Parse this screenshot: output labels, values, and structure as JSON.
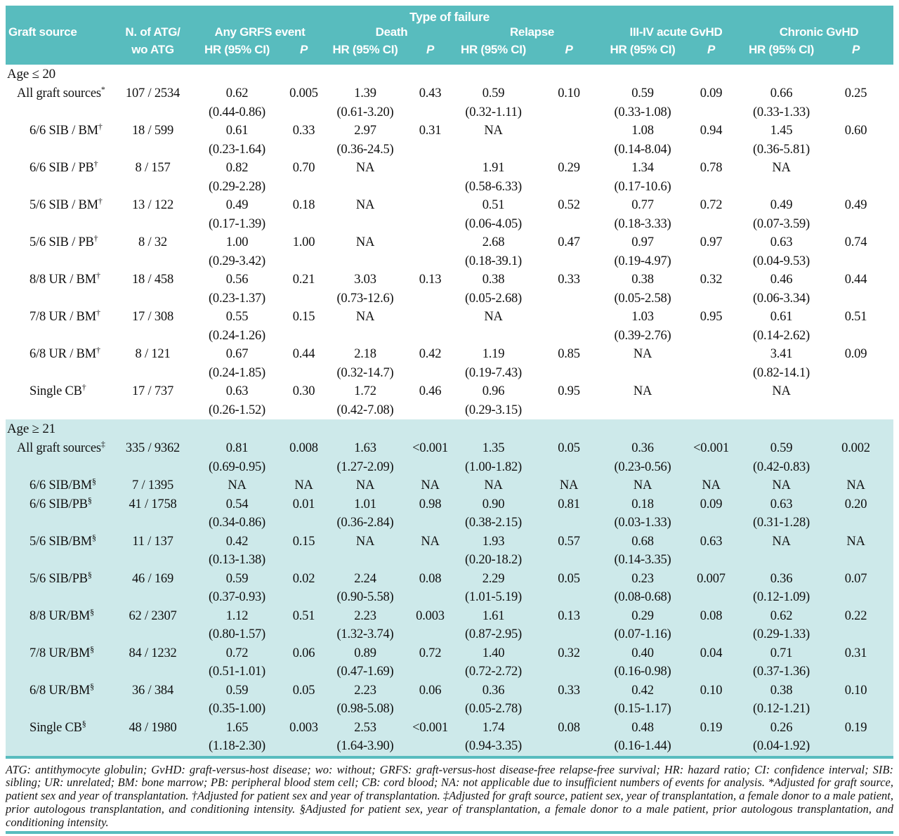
{
  "colors": {
    "header_teal": "#58bcbe",
    "section_light_teal": "#cde9ea"
  },
  "table": {
    "spanner": "Type of failure",
    "header": {
      "graft_source": "Graft source",
      "n_col_line1": "N. of ATG/",
      "n_col_line2": "wo ATG",
      "hr_label": "HR (95% CI)",
      "p_label": "P",
      "groups": [
        {
          "label": "Any GRFS event"
        },
        {
          "label": "Death"
        },
        {
          "label": "Relapse"
        },
        {
          "label": "III-IV acute GvHD"
        },
        {
          "label": "Chronic GvHD"
        }
      ]
    },
    "sections": [
      {
        "label": "Age ≤ 20",
        "rows": [
          {
            "source": "All graft sources",
            "mark": "*",
            "indent": false,
            "n": "107 / 2534",
            "cells": [
              {
                "hr": "0.62",
                "ci": "(0.44-0.86)",
                "p": "0.005"
              },
              {
                "hr": "1.39",
                "ci": "(0.61-3.20)",
                "p": "0.43"
              },
              {
                "hr": "0.59",
                "ci": "(0.32-1.11)",
                "p": "0.10"
              },
              {
                "hr": "0.59",
                "ci": "(0.33-1.08)",
                "p": "0.09"
              },
              {
                "hr": "0.66",
                "ci": "(0.33-1.33)",
                "p": "0.25"
              }
            ]
          },
          {
            "source": "6/6 SIB / BM",
            "mark": "†",
            "indent": true,
            "n": "18 / 599",
            "cells": [
              {
                "hr": "0.61",
                "ci": "(0.23-1.64)",
                "p": "0.33"
              },
              {
                "hr": "2.97",
                "ci": "(0.36-24.5)",
                "p": "0.31"
              },
              {
                "hr": "NA",
                "ci": "",
                "p": ""
              },
              {
                "hr": "1.08",
                "ci": "(0.14-8.04)",
                "p": "0.94"
              },
              {
                "hr": "1.45",
                "ci": "(0.36-5.81)",
                "p": "0.60"
              }
            ]
          },
          {
            "source": "6/6 SIB / PB",
            "mark": "†",
            "indent": true,
            "n": "8 / 157",
            "cells": [
              {
                "hr": "0.82",
                "ci": "(0.29-2.28)",
                "p": "0.70"
              },
              {
                "hr": "NA",
                "ci": "",
                "p": ""
              },
              {
                "hr": "1.91",
                "ci": "(0.58-6.33)",
                "p": "0.29"
              },
              {
                "hr": "1.34",
                "ci": "(0.17-10.6)",
                "p": "0.78"
              },
              {
                "hr": "NA",
                "ci": "",
                "p": ""
              }
            ]
          },
          {
            "source": "5/6 SIB / BM",
            "mark": "†",
            "indent": true,
            "n": "13 / 122",
            "cells": [
              {
                "hr": "0.49",
                "ci": "(0.17-1.39)",
                "p": "0.18"
              },
              {
                "hr": "NA",
                "ci": "",
                "p": ""
              },
              {
                "hr": "0.51",
                "ci": "(0.06-4.05)",
                "p": "0.52"
              },
              {
                "hr": "0.77",
                "ci": "(0.18-3.33)",
                "p": "0.72"
              },
              {
                "hr": "0.49",
                "ci": "(0.07-3.59)",
                "p": "0.49"
              }
            ]
          },
          {
            "source": "5/6 SIB / PB",
            "mark": "†",
            "indent": true,
            "n": "8 / 32",
            "cells": [
              {
                "hr": "1.00",
                "ci": "(0.29-3.42)",
                "p": "1.00"
              },
              {
                "hr": "NA",
                "ci": "",
                "p": ""
              },
              {
                "hr": "2.68",
                "ci": "(0.18-39.1)",
                "p": "0.47"
              },
              {
                "hr": "0.97",
                "ci": "(0.19-4.97)",
                "p": "0.97"
              },
              {
                "hr": "0.63",
                "ci": "(0.04-9.53)",
                "p": "0.74"
              }
            ]
          },
          {
            "source": "8/8 UR / BM",
            "mark": "†",
            "indent": true,
            "n": "18 / 458",
            "cells": [
              {
                "hr": "0.56",
                "ci": "(0.23-1.37)",
                "p": "0.21"
              },
              {
                "hr": "3.03",
                "ci": "(0.73-12.6)",
                "p": "0.13"
              },
              {
                "hr": "0.38",
                "ci": "(0.05-2.68)",
                "p": "0.33"
              },
              {
                "hr": "0.38",
                "ci": "(0.05-2.58)",
                "p": "0.32"
              },
              {
                "hr": "0.46",
                "ci": "(0.06-3.34)",
                "p": "0.44"
              }
            ]
          },
          {
            "source": "7/8 UR / BM",
            "mark": "†",
            "indent": true,
            "n": "17 / 308",
            "cells": [
              {
                "hr": "0.55",
                "ci": "(0.24-1.26)",
                "p": "0.15"
              },
              {
                "hr": "NA",
                "ci": "",
                "p": ""
              },
              {
                "hr": "NA",
                "ci": "",
                "p": ""
              },
              {
                "hr": "1.03",
                "ci": "(0.39-2.76)",
                "p": "0.95"
              },
              {
                "hr": "0.61",
                "ci": "(0.14-2.62)",
                "p": "0.51"
              }
            ]
          },
          {
            "source": "6/8 UR / BM",
            "mark": "†",
            "indent": true,
            "n": "8 / 121",
            "cells": [
              {
                "hr": "0.67",
                "ci": "(0.24-1.85)",
                "p": "0.44"
              },
              {
                "hr": "2.18",
                "ci": "(0.32-14.7)",
                "p": "0.42"
              },
              {
                "hr": "1.19",
                "ci": "(0.19-7.43)",
                "p": "0.85"
              },
              {
                "hr": "NA",
                "ci": "",
                "p": ""
              },
              {
                "hr": "3.41",
                "ci": "(0.82-14.1)",
                "p": "0.09"
              }
            ]
          },
          {
            "source": "Single CB",
            "mark": "†",
            "indent": true,
            "n": "17 / 737",
            "cells": [
              {
                "hr": "0.63",
                "ci": "(0.26-1.52)",
                "p": "0.30"
              },
              {
                "hr": "1.72",
                "ci": "(0.42-7.08)",
                "p": "0.46"
              },
              {
                "hr": "0.96",
                "ci": "(0.29-3.15)",
                "p": "0.95"
              },
              {
                "hr": "NA",
                "ci": "",
                "p": ""
              },
              {
                "hr": "NA",
                "ci": "",
                "p": ""
              }
            ]
          }
        ]
      },
      {
        "label": "Age ≥ 21",
        "rows": [
          {
            "source": "All graft sources",
            "mark": "‡",
            "indent": false,
            "n": "335 / 9362",
            "cells": [
              {
                "hr": "0.81",
                "ci": "(0.69-0.95)",
                "p": "0.008"
              },
              {
                "hr": "1.63",
                "ci": "(1.27-2.09)",
                "p": "<0.001"
              },
              {
                "hr": "1.35",
                "ci": "(1.00-1.82)",
                "p": "0.05"
              },
              {
                "hr": "0.36",
                "ci": "(0.23-0.56)",
                "p": "<0.001"
              },
              {
                "hr": "0.59",
                "ci": "(0.42-0.83)",
                "p": "0.002"
              }
            ]
          },
          {
            "source": "6/6 SIB/BM",
            "mark": "§",
            "indent": true,
            "n": "7 / 1395",
            "cells": [
              {
                "hr": "NA",
                "ci": "",
                "p": "NA"
              },
              {
                "hr": "NA",
                "ci": "",
                "p": "NA"
              },
              {
                "hr": "NA",
                "ci": "",
                "p": "NA"
              },
              {
                "hr": "NA",
                "ci": "",
                "p": "NA"
              },
              {
                "hr": "NA",
                "ci": "",
                "p": "NA"
              }
            ]
          },
          {
            "source": "6/6 SIB/PB",
            "mark": "§",
            "indent": true,
            "n": "41 / 1758",
            "cells": [
              {
                "hr": "0.54",
                "ci": "(0.34-0.86)",
                "p": "0.01"
              },
              {
                "hr": "1.01",
                "ci": "(0.36-2.84)",
                "p": "0.98"
              },
              {
                "hr": "0.90",
                "ci": "(0.38-2.15)",
                "p": "0.81"
              },
              {
                "hr": "0.18",
                "ci": "(0.03-1.33)",
                "p": "0.09"
              },
              {
                "hr": "0.63",
                "ci": "(0.31-1.28)",
                "p": "0.20"
              }
            ]
          },
          {
            "source": "5/6 SIB/BM",
            "mark": "§",
            "indent": true,
            "n": "11 / 137",
            "cells": [
              {
                "hr": "0.42",
                "ci": "(0.13-1.38)",
                "p": "0.15"
              },
              {
                "hr": "NA",
                "ci": "",
                "p": "NA"
              },
              {
                "hr": "1.93",
                "ci": "(0.20-18.2)",
                "p": "0.57"
              },
              {
                "hr": "0.68",
                "ci": "(0.14-3.35)",
                "p": "0.63"
              },
              {
                "hr": "NA",
                "ci": "",
                "p": "NA"
              }
            ]
          },
          {
            "source": "5/6 SIB/PB",
            "mark": "§",
            "indent": true,
            "n": "46 / 169",
            "cells": [
              {
                "hr": "0.59",
                "ci": "(0.37-0.93)",
                "p": "0.02"
              },
              {
                "hr": "2.24",
                "ci": "(0.90-5.58)",
                "p": "0.08"
              },
              {
                "hr": "2.29",
                "ci": "(1.01-5.19)",
                "p": "0.05"
              },
              {
                "hr": "0.23",
                "ci": "(0.08-0.68)",
                "p": "0.007"
              },
              {
                "hr": "0.36",
                "ci": "(0.12-1.09)",
                "p": "0.07"
              }
            ]
          },
          {
            "source": "8/8 UR/BM",
            "mark": "§",
            "indent": true,
            "n": "62 / 2307",
            "cells": [
              {
                "hr": "1.12",
                "ci": "(0.80-1.57)",
                "p": "0.51"
              },
              {
                "hr": "2.23",
                "ci": "(1.32-3.74)",
                "p": "0.003"
              },
              {
                "hr": "1.61",
                "ci": "(0.87-2.95)",
                "p": "0.13"
              },
              {
                "hr": "0.29",
                "ci": "(0.07-1.16)",
                "p": "0.08"
              },
              {
                "hr": "0.62",
                "ci": "(0.29-1.33)",
                "p": "0.22"
              }
            ]
          },
          {
            "source": "7/8 UR/BM",
            "mark": "§",
            "indent": true,
            "n": "84 / 1232",
            "cells": [
              {
                "hr": "0.72",
                "ci": "(0.51-1.01)",
                "p": "0.06"
              },
              {
                "hr": "0.89",
                "ci": "(0.47-1.69)",
                "p": "0.72"
              },
              {
                "hr": "1.40",
                "ci": "(0.72-2.72)",
                "p": "0.32"
              },
              {
                "hr": "0.40",
                "ci": "(0.16-0.98)",
                "p": "0.04"
              },
              {
                "hr": "0.71",
                "ci": "(0.37-1.36)",
                "p": "0.31"
              }
            ]
          },
          {
            "source": "6/8 UR/BM",
            "mark": "§",
            "indent": true,
            "n": "36 / 384",
            "cells": [
              {
                "hr": "0.59",
                "ci": "(0.35-1.00)",
                "p": "0.05"
              },
              {
                "hr": "2.23",
                "ci": "(0.98-5.08)",
                "p": "0.06"
              },
              {
                "hr": "0.36",
                "ci": "(0.05-2.78)",
                "p": "0.33"
              },
              {
                "hr": "0.42",
                "ci": "(0.15-1.17)",
                "p": "0.10"
              },
              {
                "hr": "0.38",
                "ci": "(0.12-1.21)",
                "p": "0.10"
              }
            ]
          },
          {
            "source": "Single CB",
            "mark": "§",
            "indent": true,
            "n": "48 / 1980",
            "cells": [
              {
                "hr": "1.65",
                "ci": "(1.18-2.30)",
                "p": "0.003"
              },
              {
                "hr": "2.53",
                "ci": "(1.64-3.90)",
                "p": "<0.001"
              },
              {
                "hr": "1.74",
                "ci": "(0.94-3.35)",
                "p": "0.08"
              },
              {
                "hr": "0.48",
                "ci": "(0.16-1.44)",
                "p": "0.19"
              },
              {
                "hr": "0.26",
                "ci": "(0.04-1.92)",
                "p": "0.19"
              }
            ]
          }
        ]
      }
    ],
    "footnote": "ATG: antithymocyte globulin; GvHD: graft-versus-host disease; wo: without; GRFS: graft-versus-host disease-free relapse-free survival; HR: hazard ratio; CI: confidence interval; SIB: sibling; UR: unrelated; BM: bone marrow; PB: peripheral blood stem cell; CB: cord blood; NA: not applicable due to insufficient numbers of events for analysis. *Adjusted for graft source, patient sex and year of transplantation. †Adjusted for patient sex and year of transplantation. ‡Adjusted for graft source, patient sex, year of transplantation, a female donor to a male patient, prior autologous transplantation, and conditioning intensity. §Adjusted for patient sex, year of transplantation, a female donor to a male patient, prior autologous transplantation, and conditioning intensity."
  }
}
